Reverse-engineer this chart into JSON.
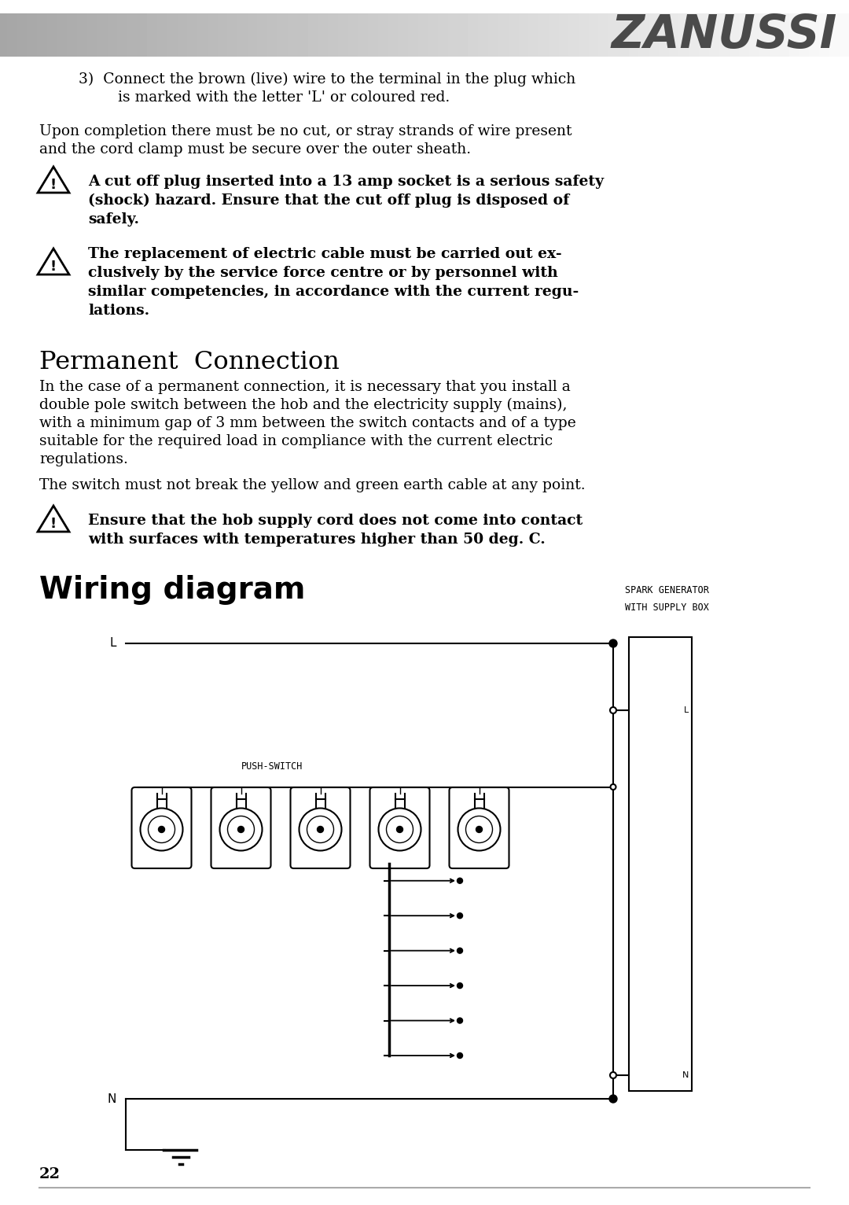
{
  "page_number": "22",
  "brand": "ZANUSSI",
  "background_color": "#ffffff",
  "text_color": "#000000",
  "step3_line1": "3)  Connect the brown (live) wire to the terminal in the plug which",
  "step3_line2": "is marked with the letter 'L' or coloured red.",
  "para1_line1": "Upon completion there must be no cut, or stray strands of wire present",
  "para1_line2": "and the cord clamp must be secure over the outer sheath.",
  "warn1_line1": "A cut off plug inserted into a 13 amp socket is a serious safety",
  "warn1_line2": "(shock) hazard. Ensure that the cut off plug is disposed of",
  "warn1_line3": "safely.",
  "warn2_line1": "The replacement of electric cable must be carried out ex-",
  "warn2_line2": "clusively by the service force centre or by personnel with",
  "warn2_line3": "similar competencies, in accordance with the current regu-",
  "warn2_line4": "lations.",
  "section_title": "Permanent  Connection",
  "sp1_line1": "In the case of a permanent connection, it is necessary that you install a",
  "sp1_line2": "double pole switch between the hob and the electricity supply (mains),",
  "sp1_line3": "with a minimum gap of 3 mm between the switch contacts and of a type",
  "sp1_line4": "suitable for the required load in compliance with the current electric",
  "sp1_line5": "regulations.",
  "sp2": "The switch must not break the yellow and green earth cable at any point.",
  "warn3_line1": "Ensure that the hob supply cord does not come into contact",
  "warn3_line2": "with surfaces with temperatures higher than 50 deg. C.",
  "diagram_title": "Wiring diagram",
  "label_L": "L",
  "label_N": "N",
  "label_push_switch": "PUSH-SWITCH",
  "label_spark1": "SPARK GENERATOR",
  "label_spark2": "WITH SUPPLY BOX",
  "label_box_L": "L",
  "label_box_N": "N"
}
